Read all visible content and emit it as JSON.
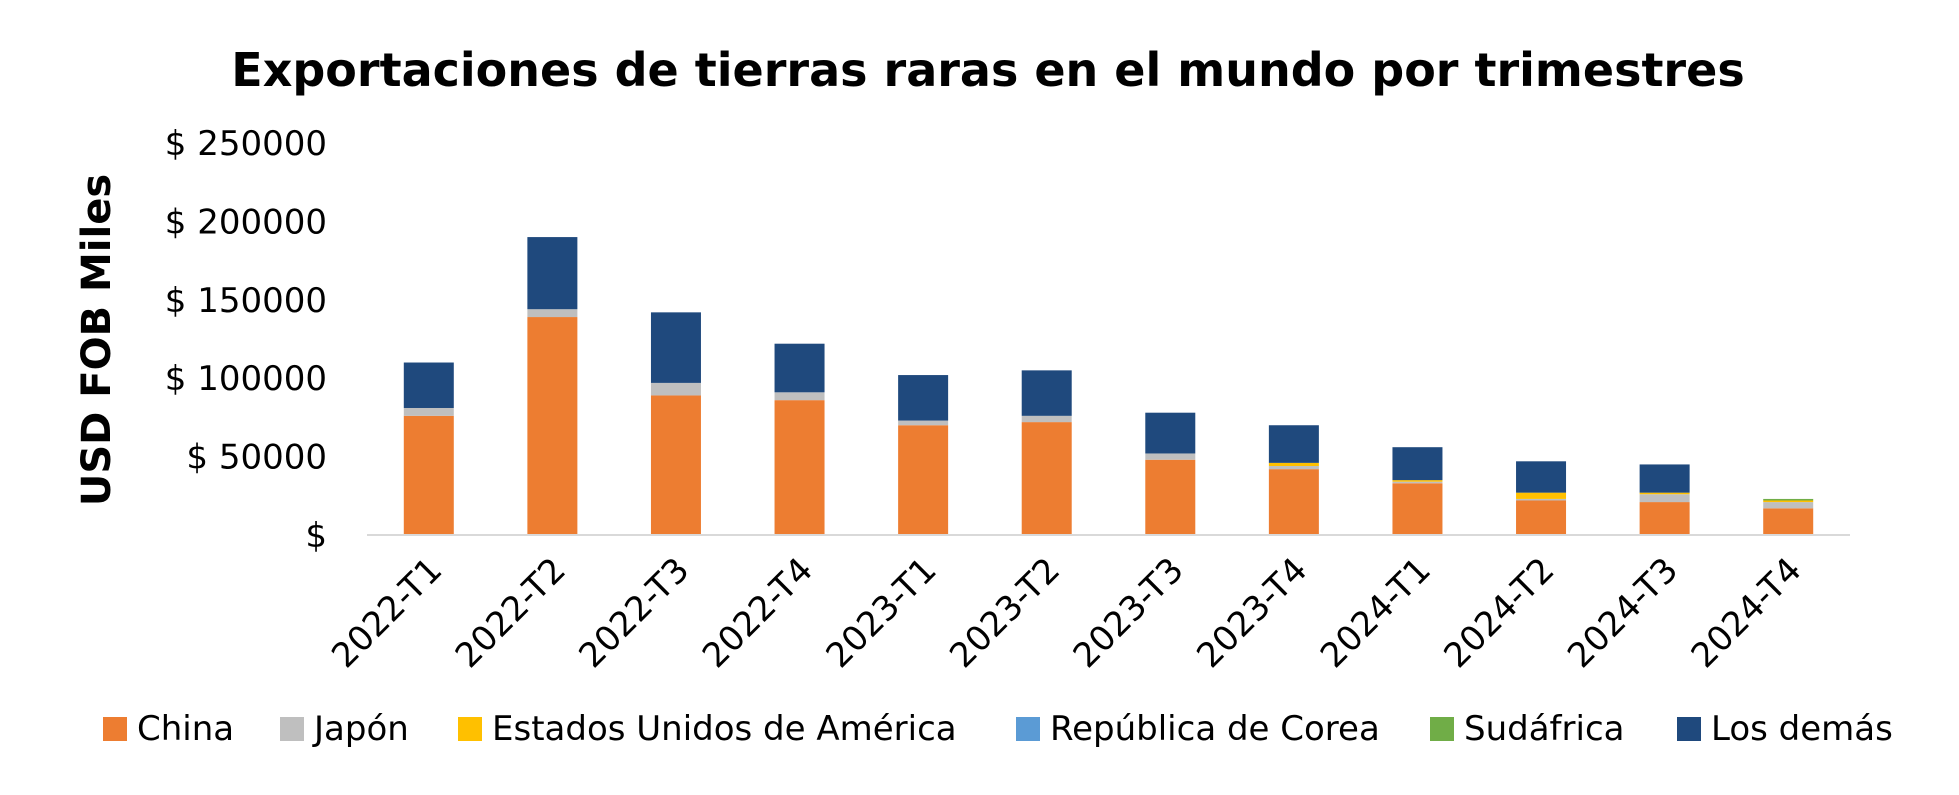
{
  "chart_data": {
    "type": "bar",
    "stacked": true,
    "title": "Exportaciones de tierras raras en el mundo por trimestres",
    "xlabel": "",
    "ylabel": "USD FOB Miles",
    "ylim": [
      0,
      250000
    ],
    "y_ticks": [
      {
        "value": 0,
        "label": "$"
      },
      {
        "value": 50000,
        "label": "$ 50000"
      },
      {
        "value": 100000,
        "label": "$ 100000"
      },
      {
        "value": 150000,
        "label": "$ 150000"
      },
      {
        "value": 200000,
        "label": "$ 200000"
      },
      {
        "value": 250000,
        "label": "$ 250000"
      }
    ],
    "grid": false,
    "legend_position": "bottom",
    "categories": [
      "2022-T1",
      "2022-T2",
      "2022-T3",
      "2022-T4",
      "2023-T1",
      "2023-T2",
      "2023-T3",
      "2023-T4",
      "2024-T1",
      "2024-T2",
      "2024-T3",
      "2024-T4"
    ],
    "series": [
      {
        "name": "China",
        "color": "#ED7D31",
        "values": [
          76000,
          139000,
          89000,
          86000,
          70000,
          72000,
          48000,
          42000,
          33000,
          22000,
          21000,
          17000
        ]
      },
      {
        "name": "Japón",
        "color": "#BFBFBF",
        "values": [
          5000,
          5000,
          8000,
          5000,
          3000,
          4000,
          4000,
          2000,
          1000,
          1000,
          5000,
          4000
        ]
      },
      {
        "name": "Estados Unidos de América",
        "color": "#FFC000",
        "values": [
          0,
          0,
          0,
          0,
          0,
          0,
          0,
          2000,
          1000,
          4000,
          1000,
          1000
        ]
      },
      {
        "name": "República de Corea",
        "color": "#5B9BD5",
        "values": [
          0,
          0,
          0,
          0,
          0,
          0,
          0,
          0,
          0,
          0,
          0,
          0
        ]
      },
      {
        "name": "Sudáfrica",
        "color": "#70AD47",
        "values": [
          0,
          0,
          0,
          0,
          0,
          0,
          0,
          0,
          0,
          0,
          0,
          1000
        ]
      },
      {
        "name": "Los demás",
        "color": "#1F497D",
        "values": [
          29000,
          46000,
          45000,
          31000,
          29000,
          29000,
          26000,
          24000,
          21000,
          20000,
          18000,
          0
        ]
      }
    ]
  }
}
